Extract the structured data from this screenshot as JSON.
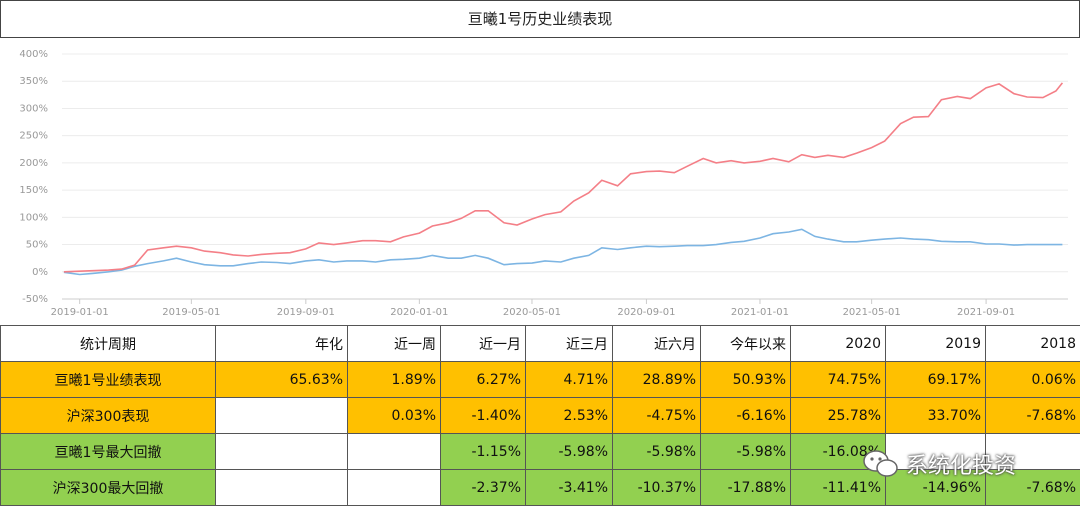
{
  "chart_data": {
    "type": "line",
    "title": "亘曦1号历史业绩表现",
    "x": [
      "2018-12-15",
      "2019-01-01",
      "2019-01-15",
      "2019-02-01",
      "2019-02-15",
      "2019-03-01",
      "2019-03-15",
      "2019-04-01",
      "2019-04-15",
      "2019-05-01",
      "2019-05-15",
      "2019-06-01",
      "2019-06-15",
      "2019-07-01",
      "2019-07-15",
      "2019-08-01",
      "2019-08-15",
      "2019-09-01",
      "2019-09-15",
      "2019-10-01",
      "2019-10-15",
      "2019-11-01",
      "2019-11-15",
      "2019-12-01",
      "2019-12-15",
      "2020-01-01",
      "2020-01-15",
      "2020-02-01",
      "2020-02-15",
      "2020-03-01",
      "2020-03-15",
      "2020-04-01",
      "2020-04-15",
      "2020-05-01",
      "2020-05-15",
      "2020-06-01",
      "2020-06-15",
      "2020-07-01",
      "2020-07-15",
      "2020-08-01",
      "2020-08-15",
      "2020-09-01",
      "2020-09-15",
      "2020-10-01",
      "2020-10-15",
      "2020-11-01",
      "2020-11-15",
      "2020-12-01",
      "2020-12-15",
      "2021-01-01",
      "2021-01-15",
      "2021-02-01",
      "2021-02-15",
      "2021-03-01",
      "2021-03-15",
      "2021-04-01",
      "2021-04-15",
      "2021-05-01",
      "2021-05-15",
      "2021-06-01",
      "2021-06-15",
      "2021-07-01",
      "2021-07-15",
      "2021-08-01",
      "2021-08-15",
      "2021-09-01",
      "2021-09-15",
      "2021-10-01",
      "2021-10-15",
      "2021-11-01",
      "2021-11-15",
      "2021-11-22"
    ],
    "series": [
      {
        "color": "#f47f87",
        "values": [
          0,
          1,
          2,
          3,
          5,
          12,
          40,
          44,
          47,
          44,
          38,
          35,
          31,
          29,
          32,
          34,
          35,
          42,
          53,
          50,
          53,
          57,
          57,
          55,
          64,
          71,
          84,
          90,
          98,
          112,
          112,
          90,
          86,
          97,
          105,
          110,
          130,
          145,
          168,
          158,
          180,
          184,
          185,
          182,
          194,
          208,
          200,
          204,
          200,
          203,
          208,
          202,
          215,
          210,
          214,
          210,
          218,
          228,
          240,
          272,
          284,
          285,
          316,
          322,
          318,
          338,
          345,
          327,
          321,
          320,
          332,
          347
        ]
      },
      {
        "color": "#7db5e3",
        "values": [
          -1,
          -5,
          -3,
          0,
          3,
          10,
          15,
          20,
          25,
          18,
          13,
          11,
          11,
          15,
          18,
          17,
          15,
          20,
          22,
          18,
          20,
          20,
          18,
          22,
          23,
          25,
          30,
          25,
          25,
          30,
          25,
          13,
          15,
          16,
          20,
          18,
          25,
          30,
          44,
          41,
          44,
          47,
          46,
          47,
          48,
          48,
          50,
          54,
          56,
          62,
          70,
          73,
          78,
          65,
          60,
          55,
          55,
          58,
          60,
          62,
          60,
          59,
          56,
          55,
          55,
          51,
          51,
          49,
          50,
          50,
          50,
          50
        ]
      }
    ],
    "xlim": [
      "2018-12-13",
      "2021-11-28"
    ],
    "xticks": [
      "2019-01-01",
      "2019-05-01",
      "2019-09-01",
      "2020-01-01",
      "2020-05-01",
      "2020-09-01",
      "2021-01-01",
      "2021-05-01",
      "2021-09-01"
    ],
    "ylim": [
      -50,
      400
    ],
    "yticks": [
      {
        "value": -50,
        "label": "-50%"
      },
      {
        "value": 0,
        "label": "0%"
      },
      {
        "value": 50,
        "label": "50%"
      },
      {
        "value": 100,
        "label": "100%"
      },
      {
        "value": 150,
        "label": "150%"
      },
      {
        "value": 200,
        "label": "200%"
      },
      {
        "value": 250,
        "label": "250%"
      },
      {
        "value": 300,
        "label": "300%"
      },
      {
        "value": 350,
        "label": "350%"
      },
      {
        "value": 400,
        "label": "400%"
      }
    ],
    "grid": true
  },
  "table": {
    "header": [
      "统计周期",
      "年化",
      "近一周",
      "近一月",
      "近三月",
      "近六月",
      "今年以来",
      "2020",
      "2019",
      "2018"
    ],
    "rows": [
      [
        "亘曦1号业绩表现",
        "65.63%",
        "1.89%",
        "6.27%",
        "4.71%",
        "28.89%",
        "50.93%",
        "74.75%",
        "69.17%",
        "0.06%"
      ],
      [
        "沪深300表现",
        null,
        "0.03%",
        "-1.40%",
        "2.53%",
        "-4.75%",
        "-6.16%",
        "25.78%",
        "33.70%",
        "-7.68%"
      ],
      [
        "亘曦1号最大回撤",
        null,
        null,
        "-1.15%",
        "-5.98%",
        "-5.98%",
        "-5.98%",
        "-16.08%",
        null,
        null
      ],
      [
        "沪深300最大回撤",
        null,
        null,
        "-2.37%",
        "-3.41%",
        "-10.37%",
        "-17.88%",
        "-11.41%",
        "-14.96%",
        "-7.68%"
      ]
    ]
  },
  "watermark": "系统化投资"
}
